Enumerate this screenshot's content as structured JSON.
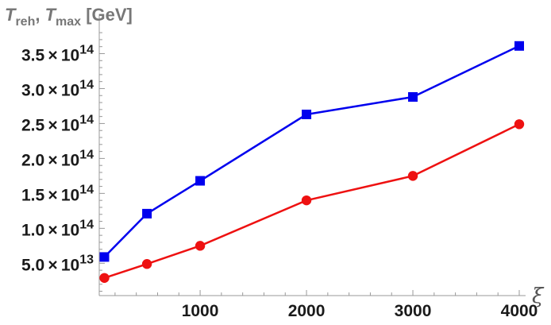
{
  "chart_data": {
    "type": "line",
    "ylabel": "T_reh, T_max [GeV]",
    "ylabel_parts": [
      {
        "text": "T",
        "italic": true
      },
      {
        "text": "reh",
        "sub": true
      },
      {
        "text": ", ",
        "italic": false
      },
      {
        "text": "T",
        "italic": true
      },
      {
        "text": "max",
        "sub": true
      },
      {
        "text": " [GeV]",
        "italic": false
      }
    ],
    "xlabel": "ξ",
    "xlim": [
      0,
      4050
    ],
    "ylim": [
      0,
      385000000000000.0
    ],
    "x_ticks": [
      1000,
      2000,
      3000,
      4000
    ],
    "x_tick_labels": [
      "1000",
      "2000",
      "3000",
      "4000"
    ],
    "y_ticks": [
      50000000000000.0,
      100000000000000.0,
      150000000000000.0,
      200000000000000.0,
      250000000000000.0,
      300000000000000.0,
      350000000000000.0
    ],
    "y_tick_labels": [
      {
        "mantissa": "5.0",
        "exponent": "13"
      },
      {
        "mantissa": "1.0",
        "exponent": "14"
      },
      {
        "mantissa": "1.5",
        "exponent": "14"
      },
      {
        "mantissa": "2.0",
        "exponent": "14"
      },
      {
        "mantissa": "2.5",
        "exponent": "14"
      },
      {
        "mantissa": "3.0",
        "exponent": "14"
      },
      {
        "mantissa": "3.5",
        "exponent": "14"
      }
    ],
    "grid": false,
    "legend": "none",
    "series": [
      {
        "marker": "square",
        "color": "#0000ee",
        "x": [
          100,
          500,
          1000,
          2000,
          3000,
          4000
        ],
        "y": [
          59000000000000.0,
          121000000000000.0,
          168000000000000.0,
          263000000000000.0,
          288000000000000.0,
          361000000000000.0
        ]
      },
      {
        "marker": "circle",
        "color": "#ee1111",
        "x": [
          100,
          500,
          1000,
          2000,
          3000,
          4000
        ],
        "y": [
          29000000000000.0,
          49000000000000.0,
          75000000000000.0,
          140000000000000.0,
          175000000000000.0,
          249000000000000.0
        ]
      }
    ]
  }
}
